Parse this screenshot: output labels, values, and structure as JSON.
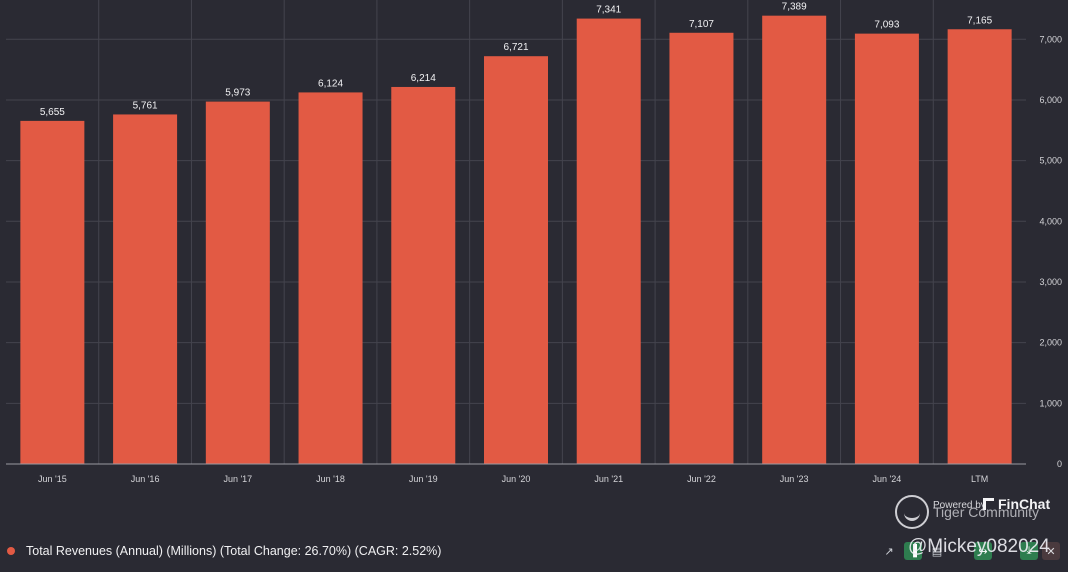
{
  "chart_data": {
    "type": "bar",
    "categories": [
      "Jun '15",
      "Jun '16",
      "Jun '17",
      "Jun '18",
      "Jun '19",
      "Jun '20",
      "Jun '21",
      "Jun '22",
      "Jun '23",
      "Jun '24",
      "LTM"
    ],
    "values": [
      5655,
      5761,
      5973,
      6124,
      6214,
      6721,
      7341,
      7107,
      7389,
      7093,
      7165
    ],
    "value_labels": [
      "5,655",
      "5,761",
      "5,973",
      "6,124",
      "6,214",
      "6,721",
      "7,341",
      "7,107",
      "7,389",
      "7,093",
      "7,165"
    ],
    "y_ticks": [
      0,
      1000,
      2000,
      3000,
      4000,
      5000,
      6000,
      7000
    ],
    "y_tick_labels": [
      "0",
      "1,000",
      "2,000",
      "3,000",
      "4,000",
      "5,000",
      "6,000",
      "7,000"
    ],
    "ylim": [
      0,
      7400
    ],
    "y_axis_position": "right",
    "grid": true,
    "bar_color": "#e25a44",
    "background_color": "#2a2a33",
    "grid_color": "#44444e",
    "title": "",
    "xlabel": "",
    "ylabel": ""
  },
  "legend": {
    "label": "Total Revenues (Annual) (Millions) (Total Change: 26.70%) (CAGR: 2.52%)",
    "color": "#e25a44"
  },
  "watermark": {
    "powered_by": "Powered by",
    "finchat": "FinChat",
    "community": "Tiger Community",
    "handle": "@Mickey082024"
  },
  "toolbar": {
    "icons": [
      "line-chart-icon",
      "bar-chart-icon",
      "table-icon",
      "share-icon",
      "download-icon",
      "close-icon"
    ]
  }
}
